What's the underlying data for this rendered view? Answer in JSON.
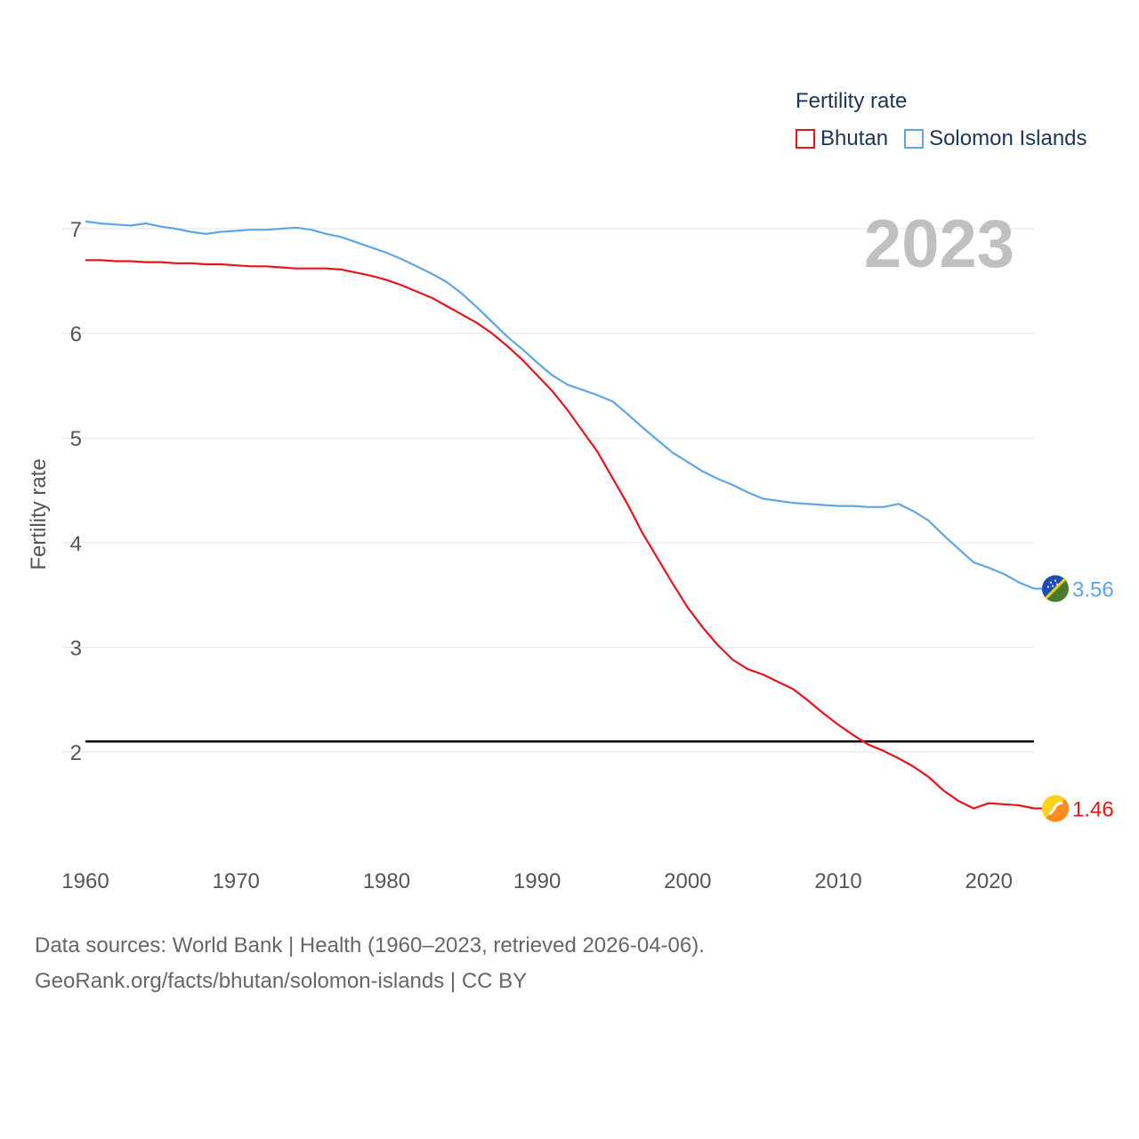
{
  "legend": {
    "title": "Fertility rate",
    "items": [
      {
        "name": "Bhutan",
        "color": "#e8141b"
      },
      {
        "name": "Solomon Islands",
        "color": "#5ea6e6"
      }
    ]
  },
  "year_label": "2023",
  "footer": {
    "line1": "Data sources: World Bank | Health (1960–2023, retrieved 2026-04-06).",
    "line2": "GeoRank.org/facts/bhutan/solomon-islands | CC BY"
  },
  "chart_data": {
    "type": "line",
    "title": "Fertility rate",
    "xlabel": "",
    "ylabel": "Fertility rate",
    "xlim": [
      1960,
      2023
    ],
    "ylim": [
      1.0,
      7.3
    ],
    "x_ticks": [
      1960,
      1970,
      1980,
      1990,
      2000,
      2010,
      2020
    ],
    "y_ticks": [
      2,
      3,
      4,
      5,
      6,
      7
    ],
    "grid": true,
    "reference_line": {
      "y": 2.1,
      "color": "#000000"
    },
    "x": [
      1960,
      1961,
      1962,
      1963,
      1964,
      1965,
      1966,
      1967,
      1968,
      1969,
      1970,
      1971,
      1972,
      1973,
      1974,
      1975,
      1976,
      1977,
      1978,
      1979,
      1980,
      1981,
      1982,
      1983,
      1984,
      1985,
      1986,
      1987,
      1988,
      1989,
      1990,
      1991,
      1992,
      1993,
      1994,
      1995,
      1996,
      1997,
      1998,
      1999,
      2000,
      2001,
      2002,
      2003,
      2004,
      2005,
      2006,
      2007,
      2008,
      2009,
      2010,
      2011,
      2012,
      2013,
      2014,
      2015,
      2016,
      2017,
      2018,
      2019,
      2020,
      2021,
      2022,
      2023
    ],
    "series": [
      {
        "name": "Bhutan",
        "color": "#e8141b",
        "end_label": "1.46",
        "values": [
          6.7,
          6.7,
          6.69,
          6.69,
          6.68,
          6.68,
          6.67,
          6.67,
          6.66,
          6.66,
          6.65,
          6.64,
          6.64,
          6.63,
          6.62,
          6.62,
          6.62,
          6.61,
          6.58,
          6.55,
          6.51,
          6.46,
          6.4,
          6.34,
          6.26,
          6.18,
          6.1,
          6.0,
          5.88,
          5.75,
          5.6,
          5.45,
          5.27,
          5.07,
          4.87,
          4.62,
          4.37,
          4.09,
          3.85,
          3.61,
          3.38,
          3.19,
          3.02,
          2.88,
          2.79,
          2.74,
          2.67,
          2.6,
          2.49,
          2.37,
          2.26,
          2.16,
          2.07,
          2.01,
          1.94,
          1.86,
          1.76,
          1.63,
          1.53,
          1.46,
          1.51,
          1.5,
          1.49,
          1.46
        ]
      },
      {
        "name": "Solomon Islands",
        "color": "#5ea6e6",
        "end_label": "3.56",
        "values": [
          7.07,
          7.05,
          7.04,
          7.03,
          7.05,
          7.02,
          7.0,
          6.97,
          6.95,
          6.97,
          6.98,
          6.99,
          6.99,
          7.0,
          7.01,
          6.99,
          6.95,
          6.92,
          6.87,
          6.82,
          6.77,
          6.71,
          6.64,
          6.57,
          6.49,
          6.38,
          6.25,
          6.11,
          5.97,
          5.85,
          5.72,
          5.6,
          5.51,
          5.46,
          5.41,
          5.35,
          5.23,
          5.1,
          4.98,
          4.86,
          4.77,
          4.68,
          4.61,
          4.55,
          4.48,
          4.42,
          4.4,
          4.38,
          4.37,
          4.36,
          4.35,
          4.35,
          4.34,
          4.34,
          4.37,
          4.3,
          4.21,
          4.07,
          3.94,
          3.81,
          3.76,
          3.7,
          3.62,
          3.56
        ]
      }
    ]
  }
}
